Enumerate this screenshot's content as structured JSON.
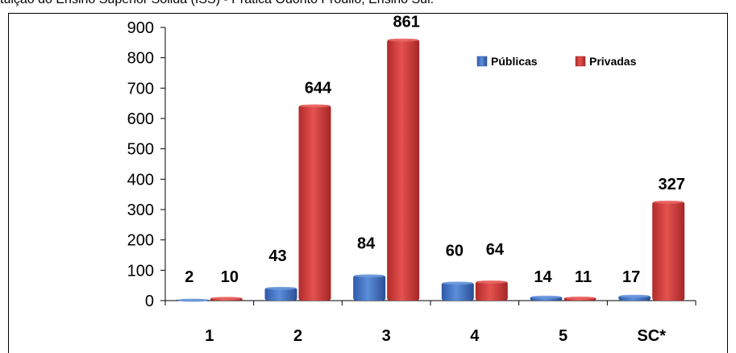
{
  "caption": "tuição do Ensino Superior Sólida (ISS) - Prática Odonto Prodiló, Ensino Sul.",
  "chart_data": {
    "type": "bar",
    "title": "",
    "xlabel": "",
    "ylabel": "",
    "ylim": [
      0,
      900
    ],
    "yticks": [
      0,
      100,
      200,
      300,
      400,
      500,
      600,
      700,
      800,
      900
    ],
    "categories": [
      "1",
      "2",
      "3",
      "4",
      "5",
      "SC*"
    ],
    "series": [
      {
        "name": "Públicas",
        "color": "#4472C4",
        "values": [
          2,
          43,
          84,
          60,
          14,
          17
        ]
      },
      {
        "name": "Privadas",
        "color": "#D94343",
        "values": [
          10,
          644,
          861,
          64,
          11,
          327
        ]
      }
    ],
    "legend_position": "top-right",
    "grid": false
  }
}
